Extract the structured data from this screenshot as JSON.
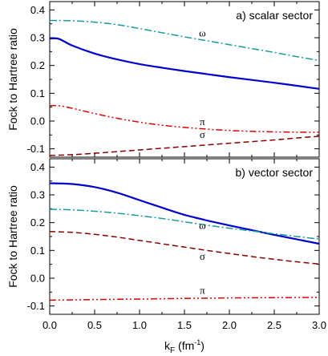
{
  "chart_data": [
    {
      "type": "line",
      "title": "a) scalar sector",
      "xlabel": "k_F (fm^-1)",
      "ylabel": "Fock to Hartree ratio",
      "xlim": [
        0.0,
        3.0
      ],
      "ylim": [
        -0.13,
        0.43
      ],
      "xticks": [
        0.0,
        0.5,
        1.0,
        1.5,
        2.0,
        2.5,
        3.0
      ],
      "yticks": [
        -0.1,
        0.0,
        0.1,
        0.2,
        0.3,
        0.4
      ],
      "legend": "none",
      "series": [
        {
          "name": "ω",
          "color": "#1a9a9a",
          "dash": "dashdot",
          "x": [
            0.0,
            0.25,
            0.5,
            0.75,
            1.0,
            1.25,
            1.5,
            1.75,
            2.0,
            2.25,
            2.5,
            2.75,
            3.0
          ],
          "y": [
            0.362,
            0.361,
            0.356,
            0.347,
            0.333,
            0.318,
            0.303,
            0.289,
            0.275,
            0.261,
            0.247,
            0.232,
            0.218
          ]
        },
        {
          "name": "",
          "color": "#0000cc",
          "dash": "solid",
          "x": [
            0.0,
            0.1,
            0.25,
            0.5,
            0.75,
            1.0,
            1.25,
            1.5,
            1.75,
            2.0,
            2.25,
            2.5,
            2.75,
            3.0
          ],
          "y": [
            0.297,
            0.296,
            0.272,
            0.243,
            0.222,
            0.205,
            0.192,
            0.18,
            0.169,
            0.158,
            0.148,
            0.138,
            0.127,
            0.116
          ]
        },
        {
          "name": "π",
          "color": "#dd0000",
          "dash": "dashdotdot",
          "x": [
            0.0,
            0.1,
            0.25,
            0.5,
            0.75,
            1.0,
            1.25,
            1.5,
            1.75,
            2.0,
            2.25,
            2.5,
            2.75,
            3.0
          ],
          "y": [
            0.055,
            0.055,
            0.046,
            0.027,
            0.01,
            -0.004,
            -0.015,
            -0.023,
            -0.029,
            -0.034,
            -0.037,
            -0.039,
            -0.04,
            -0.04
          ]
        },
        {
          "name": "σ",
          "color": "#880000",
          "dash": "dashed",
          "x": [
            0.0,
            0.25,
            0.5,
            0.75,
            1.0,
            1.25,
            1.5,
            1.75,
            2.0,
            2.25,
            2.5,
            2.75,
            3.0
          ],
          "y": [
            -0.124,
            -0.121,
            -0.116,
            -0.11,
            -0.104,
            -0.098,
            -0.092,
            -0.086,
            -0.08,
            -0.074,
            -0.068,
            -0.061,
            -0.055
          ]
        }
      ],
      "annotations": [
        {
          "text": "ω",
          "x": 1.7,
          "y": 0.305
        },
        {
          "text": "π",
          "x": 1.7,
          "y": -0.015
        },
        {
          "text": "σ",
          "x": 1.7,
          "y": -0.06
        }
      ]
    },
    {
      "type": "line",
      "title": "b) vector sector",
      "xlabel": "k_F (fm^-1)",
      "ylabel": "Fock to Hartree ratio",
      "xlim": [
        0.0,
        3.0
      ],
      "ylim": [
        -0.13,
        0.43
      ],
      "xticks": [
        0.0,
        0.5,
        1.0,
        1.5,
        2.0,
        2.5,
        3.0
      ],
      "yticks": [
        -0.1,
        0.0,
        0.1,
        0.2,
        0.3,
        0.4
      ],
      "legend": "none",
      "series": [
        {
          "name": "",
          "color": "#0000cc",
          "dash": "solid",
          "x": [
            0.0,
            0.25,
            0.5,
            0.75,
            1.0,
            1.25,
            1.5,
            1.75,
            2.0,
            2.25,
            2.5,
            2.75,
            3.0
          ],
          "y": [
            0.342,
            0.339,
            0.328,
            0.308,
            0.281,
            0.254,
            0.228,
            0.208,
            0.19,
            0.173,
            0.156,
            0.14,
            0.124
          ]
        },
        {
          "name": "ω",
          "color": "#1a9a9a",
          "dash": "dashdot",
          "x": [
            0.0,
            0.25,
            0.5,
            0.75,
            1.0,
            1.25,
            1.5,
            1.75,
            2.0,
            2.25,
            2.5,
            2.75,
            3.0
          ],
          "y": [
            0.248,
            0.246,
            0.241,
            0.234,
            0.225,
            0.215,
            0.203,
            0.191,
            0.18,
            0.17,
            0.16,
            0.15,
            0.141
          ]
        },
        {
          "name": "σ",
          "color": "#880000",
          "dash": "dashed",
          "x": [
            0.0,
            0.25,
            0.5,
            0.75,
            1.0,
            1.25,
            1.5,
            1.75,
            2.0,
            2.25,
            2.5,
            2.75,
            3.0
          ],
          "y": [
            0.168,
            0.165,
            0.158,
            0.148,
            0.136,
            0.124,
            0.112,
            0.1,
            0.089,
            0.078,
            0.068,
            0.059,
            0.051
          ]
        },
        {
          "name": "π",
          "color": "#dd0000",
          "dash": "dashdotdot",
          "x": [
            0.0,
            0.5,
            1.0,
            1.5,
            2.0,
            2.5,
            3.0
          ],
          "y": [
            -0.079,
            -0.077,
            -0.075,
            -0.073,
            -0.071,
            -0.07,
            -0.069
          ]
        }
      ],
      "annotations": [
        {
          "text": "ω",
          "x": 1.7,
          "y": 0.177
        },
        {
          "text": "σ",
          "x": 1.7,
          "y": 0.067
        },
        {
          "text": "π",
          "x": 1.7,
          "y": -0.056
        }
      ]
    }
  ],
  "labels": {
    "ylabel_a": "Fock to Hartree ratio",
    "ylabel_b": "Fock to Hartree ratio",
    "xlabel_main": "k",
    "xlabel_sub": "F",
    "xlabel_unit": " (fm",
    "xlabel_exp": "-1",
    "xlabel_close": ")"
  }
}
